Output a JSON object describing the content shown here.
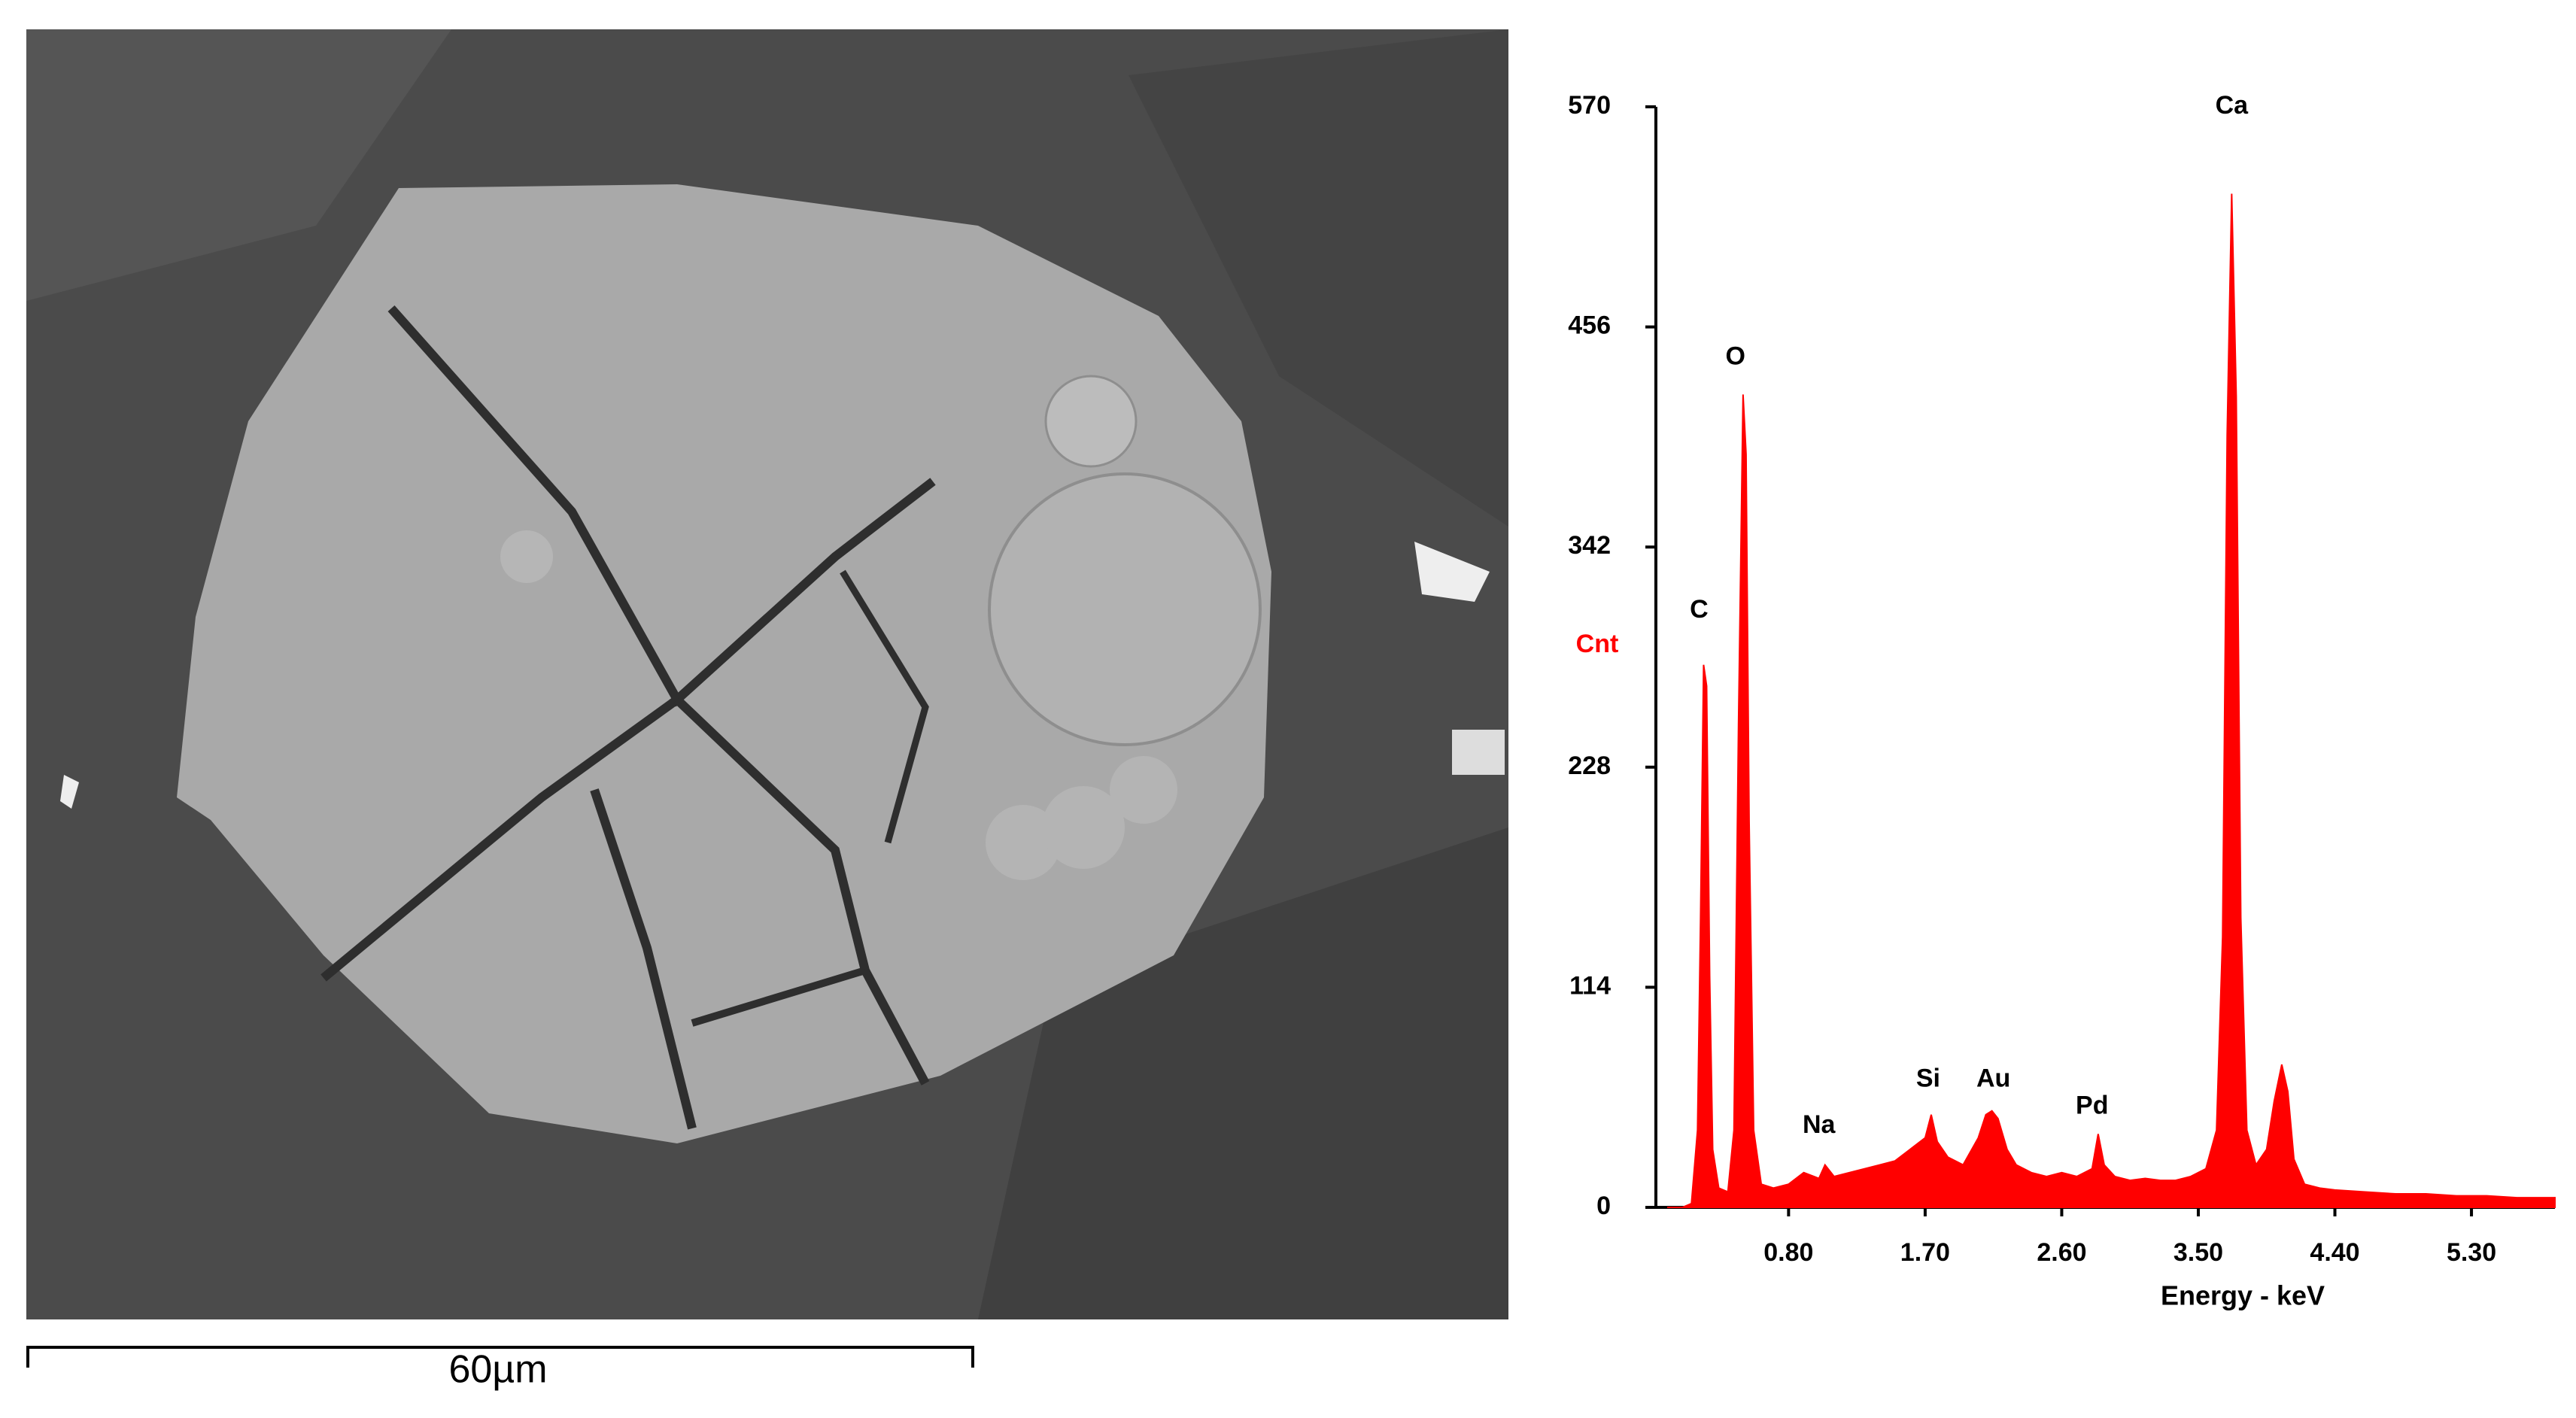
{
  "image": {
    "scale_bar": "60µm"
  },
  "chart_data": {
    "type": "area",
    "y_label": "Cnt",
    "x_label": "Energy - keV",
    "color": "#ff0000",
    "annotations": [
      "C",
      "O",
      "Na",
      "Si",
      "Au",
      "Pd",
      "Ca"
    ],
    "x": [
      0.0,
      0.1,
      0.16,
      0.2,
      0.22,
      0.24,
      0.26,
      0.28,
      0.3,
      0.34,
      0.4,
      0.44,
      0.47,
      0.5,
      0.52,
      0.54,
      0.57,
      0.62,
      0.7,
      0.8,
      0.9,
      1.0,
      1.04,
      1.1,
      1.2,
      1.3,
      1.4,
      1.5,
      1.6,
      1.7,
      1.74,
      1.78,
      1.85,
      1.95,
      2.05,
      2.1,
      2.14,
      2.18,
      2.24,
      2.3,
      2.4,
      2.5,
      2.6,
      2.7,
      2.8,
      2.84,
      2.88,
      2.95,
      3.05,
      3.15,
      3.25,
      3.35,
      3.45,
      3.55,
      3.62,
      3.66,
      3.69,
      3.72,
      3.75,
      3.78,
      3.82,
      3.88,
      3.95,
      4.0,
      4.05,
      4.09,
      4.13,
      4.2,
      4.3,
      4.4,
      4.6,
      4.8,
      5.0,
      5.2,
      5.4,
      5.6,
      5.85
    ],
    "values": [
      0,
      0,
      2,
      40,
      150,
      281,
      270,
      120,
      30,
      10,
      8,
      40,
      250,
      421,
      390,
      200,
      40,
      12,
      10,
      12,
      18,
      15,
      22,
      16,
      18,
      20,
      22,
      24,
      30,
      36,
      48,
      34,
      26,
      22,
      36,
      48,
      50,
      46,
      30,
      22,
      18,
      16,
      18,
      16,
      20,
      38,
      22,
      16,
      14,
      15,
      14,
      14,
      16,
      20,
      40,
      140,
      400,
      525,
      420,
      150,
      40,
      22,
      30,
      55,
      74,
      60,
      25,
      12,
      10,
      9,
      8,
      7,
      7,
      6,
      6,
      5,
      5
    ],
    "xlim": [
      0,
      5.85
    ],
    "ylim": [
      0,
      570
    ],
    "xticks": [
      {
        "value": 0.8,
        "label": "0.80"
      },
      {
        "value": 1.7,
        "label": "1.70"
      },
      {
        "value": 2.6,
        "label": "2.60"
      },
      {
        "value": 3.5,
        "label": "3.50"
      },
      {
        "value": 4.4,
        "label": "4.40"
      },
      {
        "value": 5.3,
        "label": "5.30"
      }
    ],
    "yticks": [
      0,
      114,
      228,
      342,
      456,
      570
    ]
  }
}
